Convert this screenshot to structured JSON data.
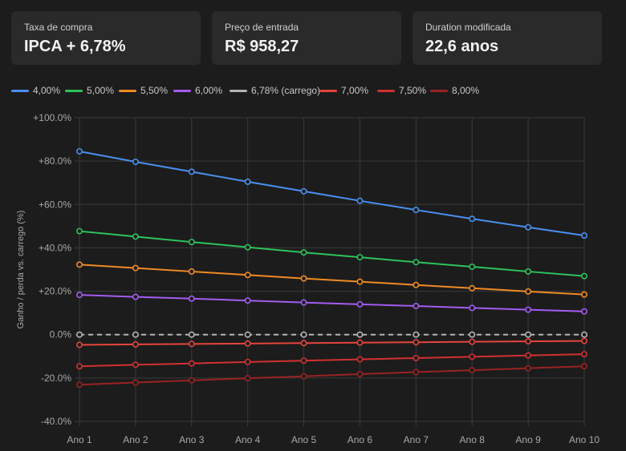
{
  "cards": [
    {
      "label": "Taxa de compra",
      "value": "IPCA + 6,78%"
    },
    {
      "label": "Preço de entrada",
      "value": "R$ 958,27"
    },
    {
      "label": "Duration modificada",
      "value": "22,6 anos"
    }
  ],
  "chart_data": {
    "type": "line",
    "ylabel": "Ganho / perda vs. carrego (%)",
    "xlabel": "",
    "categories": [
      "Ano 1",
      "Ano 2",
      "Ano 3",
      "Ano 4",
      "Ano 5",
      "Ano 6",
      "Ano 7",
      "Ano 8",
      "Ano 9",
      "Ano 10"
    ],
    "ylim": [
      -40,
      100
    ],
    "yticks": [
      "+100.0%",
      "+80.0%",
      "+60.0%",
      "+40.0%",
      "+20.0%",
      "0.0%",
      "-20.0%",
      "-40.0%"
    ],
    "grid": true,
    "legend_position": "top-left",
    "series": [
      {
        "name": "4,00%",
        "color": "#4a8ff0",
        "dashed": false,
        "values": [
          84.5,
          79.7,
          75.1,
          70.5,
          66.1,
          61.7,
          57.5,
          53.4,
          49.5,
          45.7
        ]
      },
      {
        "name": "5,00%",
        "color": "#2ec25c",
        "dashed": false,
        "values": [
          47.7,
          45.2,
          42.7,
          40.3,
          37.9,
          35.7,
          33.4,
          31.3,
          29.1,
          27.0
        ]
      },
      {
        "name": "5,50%",
        "color": "#f08a24",
        "dashed": false,
        "values": [
          32.3,
          30.7,
          29.1,
          27.5,
          25.9,
          24.4,
          22.9,
          21.4,
          19.9,
          18.5
        ]
      },
      {
        "name": "6,00%",
        "color": "#a35cf0",
        "dashed": false,
        "values": [
          18.3,
          17.4,
          16.6,
          15.7,
          14.8,
          14.0,
          13.2,
          12.3,
          11.5,
          10.7
        ]
      },
      {
        "name": "6,78% (carrego)",
        "color": "#b4b4b4",
        "dashed": true,
        "values": [
          0,
          0,
          0,
          0,
          0,
          0,
          0,
          0,
          0,
          0
        ]
      },
      {
        "name": "7,00%",
        "color": "#e5443c",
        "dashed": false,
        "values": [
          -4.7,
          -4.5,
          -4.3,
          -4.1,
          -3.9,
          -3.7,
          -3.5,
          -3.3,
          -3.1,
          -2.9
        ]
      },
      {
        "name": "7,50%",
        "color": "#d23030",
        "dashed": false,
        "values": [
          -14.6,
          -13.9,
          -13.3,
          -12.6,
          -12.0,
          -11.4,
          -10.8,
          -10.2,
          -9.6,
          -9.0
        ]
      },
      {
        "name": "8,00%",
        "color": "#9a2222",
        "dashed": false,
        "values": [
          -23.1,
          -22.1,
          -21.1,
          -20.1,
          -19.2,
          -18.2,
          -17.3,
          -16.4,
          -15.5,
          -14.6
        ]
      }
    ]
  }
}
